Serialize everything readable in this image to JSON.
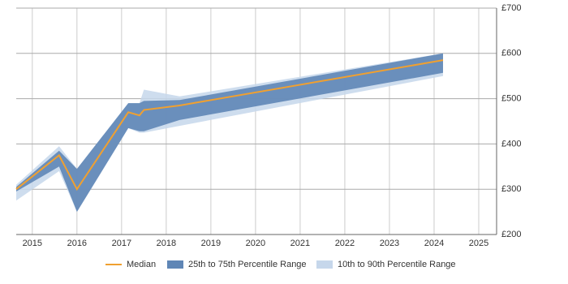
{
  "chart_data": {
    "type": "line",
    "x": [
      2014.64,
      2015.6,
      2016.0,
      2017.15,
      2017.4,
      2017.5,
      2018.3,
      2024.2
    ],
    "series": [
      {
        "name": "Median",
        "color": "#f0a030",
        "values": [
          300,
          375,
          300,
          470,
          463,
          475,
          485,
          585
        ]
      },
      {
        "name": "25th to 75th Percentile Range",
        "color": "#5f86b6",
        "low": [
          295,
          350,
          250,
          435,
          428,
          428,
          453,
          557
        ],
        "high": [
          305,
          385,
          345,
          490,
          490,
          495,
          497,
          600
        ]
      },
      {
        "name": "10th to 90th Percentile Range",
        "color": "#c6d7eb",
        "low": [
          275,
          340,
          250,
          435,
          425,
          425,
          440,
          550
        ],
        "high": [
          310,
          395,
          345,
          490,
          490,
          520,
          505,
          600
        ]
      }
    ],
    "xlim": [
      2014.64,
      2025.4
    ],
    "xticks": [
      2015,
      2016,
      2017,
      2018,
      2019,
      2020,
      2021,
      2022,
      2023,
      2024,
      2025
    ],
    "ylim": [
      200,
      700
    ],
    "yticks": [
      {
        "value": 200,
        "label": "£200"
      },
      {
        "value": 300,
        "label": "£300"
      },
      {
        "value": 400,
        "label": "£400"
      },
      {
        "value": 500,
        "label": "£500"
      },
      {
        "value": 600,
        "label": "£600"
      },
      {
        "value": 700,
        "label": "£700"
      }
    ],
    "grid": true
  }
}
